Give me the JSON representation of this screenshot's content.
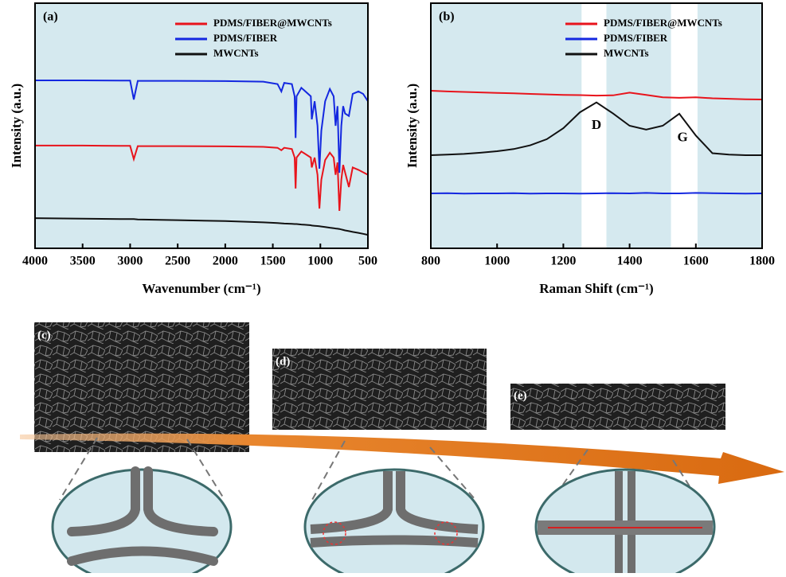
{
  "chart_data": [
    {
      "type": "line",
      "panel_label": "(a)",
      "x_label": "Wavenumber (cm⁻¹)",
      "y_label": "Intensity (a.u.)",
      "xlim": [
        4000,
        500
      ],
      "xticks": [
        4000,
        3500,
        3000,
        2500,
        2000,
        1500,
        1000,
        500
      ],
      "ylim": [
        0,
        100
      ],
      "x": [
        4000,
        3500,
        3100,
        3000,
        2962,
        2920,
        2500,
        2000,
        1600,
        1450,
        1410,
        1380,
        1300,
        1270,
        1260,
        1250,
        1200,
        1100,
        1090,
        1060,
        1030,
        1010,
        990,
        950,
        900,
        860,
        840,
        820,
        800,
        780,
        760,
        740,
        700,
        660,
        600,
        550,
        500
      ],
      "series": [
        {
          "name": "PDMS/FIBER@MWCNTs",
          "color": "#e8141c",
          "values": [
            41.9,
            41.9,
            41.8,
            41.8,
            36.4,
            41.7,
            41.7,
            41.6,
            41.4,
            41,
            40,
            41,
            40.5,
            37,
            24.4,
            37,
            39.5,
            37,
            33,
            37,
            30,
            16.2,
            28,
            36,
            39,
            37,
            30,
            35,
            15.3,
            28,
            34,
            31,
            25,
            33,
            32,
            31,
            30
          ]
        },
        {
          "name": "PDMS/FIBER",
          "color": "#1428e0",
          "values": [
            68.5,
            68.5,
            68.4,
            68.4,
            60.7,
            68.3,
            68.3,
            68.2,
            68,
            67,
            64,
            67.5,
            67,
            62,
            45,
            62,
            65.5,
            62,
            52.6,
            60,
            50,
            32.5,
            48,
            60,
            65,
            62,
            50,
            58,
            30.8,
            50,
            58,
            55,
            54,
            63,
            64,
            63,
            60
          ]
        },
        {
          "name": "MWCNTs",
          "color": "#111111",
          "values": [
            12.3,
            12.1,
            11.9,
            11.9,
            11.9,
            11.8,
            11.5,
            11.1,
            10.6,
            10.3,
            10.2,
            10.1,
            10,
            9.9,
            9.9,
            9.9,
            9.7,
            9.4,
            9.3,
            9.2,
            9.1,
            9,
            8.9,
            8.7,
            8.4,
            8.2,
            8.1,
            8,
            7.9,
            7.7,
            7.5,
            7.3,
            7,
            6.7,
            6.3,
            5.9,
            5.5
          ]
        }
      ]
    },
    {
      "type": "line",
      "panel_label": "(b)",
      "x_label": "Raman Shift (cm⁻¹)",
      "y_label": "Intensity (a.u.)",
      "xlim": [
        800,
        1800
      ],
      "xticks": [
        800,
        1000,
        1200,
        1400,
        1600,
        1800
      ],
      "ylim": [
        0,
        100
      ],
      "white_bands": [
        [
          1255,
          1330
        ],
        [
          1525,
          1605
        ]
      ],
      "annotations": [
        {
          "text": "D",
          "x": 1300,
          "y": 50
        },
        {
          "text": "G",
          "x": 1560,
          "y": 45
        }
      ],
      "x": [
        800,
        850,
        900,
        950,
        1000,
        1050,
        1100,
        1150,
        1200,
        1250,
        1300,
        1350,
        1400,
        1450,
        1500,
        1550,
        1600,
        1650,
        1700,
        1750,
        1800
      ],
      "series": [
        {
          "name": "PDMS/FIBER@MWCNTs",
          "color": "#e8141c",
          "values": [
            64.3,
            64,
            63.8,
            63.6,
            63.4,
            63.2,
            63,
            62.8,
            62.6,
            62.5,
            62.3,
            62.4,
            63.5,
            62.6,
            61.6,
            61.4,
            61.6,
            61.2,
            61,
            60.8,
            60.7
          ]
        },
        {
          "name": "PDMS/FIBER",
          "color": "#1428e0",
          "values": [
            22.4,
            22.5,
            22.3,
            22.4,
            22.4,
            22.5,
            22.3,
            22.4,
            22.4,
            22.3,
            22.4,
            22.5,
            22.4,
            22.6,
            22.4,
            22.4,
            22.6,
            22.5,
            22.4,
            22.3,
            22.4
          ]
        },
        {
          "name": "MWCNTs",
          "color": "#111111",
          "values": [
            38,
            38.2,
            38.5,
            39,
            39.6,
            40.5,
            42,
            44.5,
            49,
            55.5,
            59.5,
            55,
            50,
            48.4,
            50,
            54.9,
            46,
            38.8,
            38.2,
            38,
            38
          ]
        }
      ]
    }
  ],
  "image_labels": [
    "(c)",
    "(d)",
    "(e)"
  ]
}
